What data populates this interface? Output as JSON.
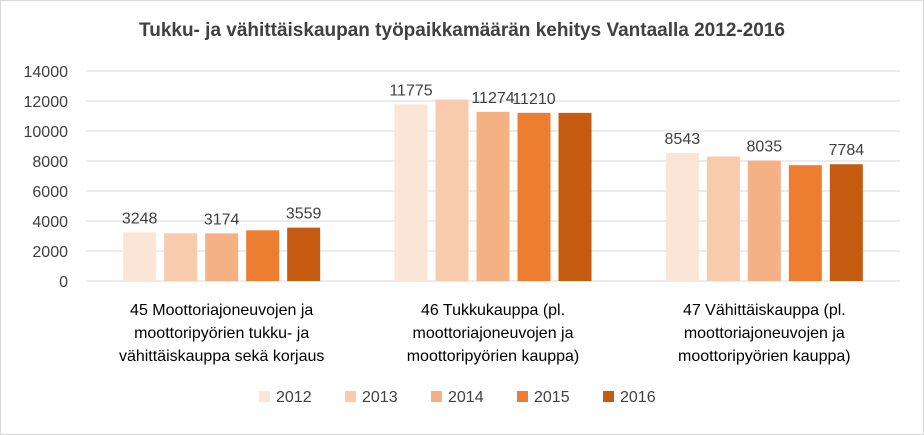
{
  "chart_data": {
    "type": "bar",
    "title": "Tukku- ja vähittäiskaupan työpaikkamäärän kehitys Vantaalla 2012-2016",
    "categories": [
      [
        "45 Moottoriajoneuvojen ja",
        "moottoripyörien tukku- ja",
        "vähittäiskauppa sekä korjaus"
      ],
      [
        "46 Tukkukauppa (pl.",
        "moottoriajoneuvojen ja",
        "moottoripyörien kauppa)"
      ],
      [
        "47 Vähittäiskauppa (pl.",
        "moottoriajoneuvojen ja",
        "moottoripyörien kauppa)"
      ]
    ],
    "series": [
      {
        "name": "2012",
        "color": "#fbe5d6",
        "values": [
          3248,
          11775,
          8543
        ],
        "labels": [
          "3248",
          "11775",
          "8543"
        ]
      },
      {
        "name": "2013",
        "color": "#f8cbad",
        "values": [
          3180,
          12100,
          8300
        ],
        "labels": [
          null,
          null,
          null
        ]
      },
      {
        "name": "2014",
        "color": "#f4b183",
        "values": [
          3174,
          11274,
          8035
        ],
        "labels": [
          "3174",
          "11274",
          "8035"
        ]
      },
      {
        "name": "2015",
        "color": "#ed7d31",
        "values": [
          3380,
          11210,
          7720
        ],
        "labels": [
          null,
          "11210",
          null
        ]
      },
      {
        "name": "2016",
        "color": "#c55a11",
        "values": [
          3559,
          11210,
          7784
        ],
        "labels": [
          "3559",
          null,
          "7784"
        ]
      }
    ],
    "ylim": [
      0,
      14000
    ],
    "yticks": [
      0,
      2000,
      4000,
      6000,
      8000,
      10000,
      12000,
      14000
    ],
    "grid": true,
    "legend": "bottom"
  }
}
